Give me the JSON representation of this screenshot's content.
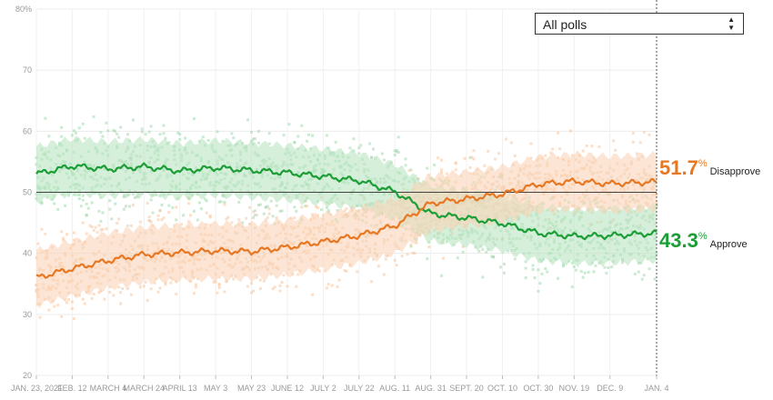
{
  "filter": {
    "selected": "All polls"
  },
  "chart_data": {
    "type": "line",
    "ylim": [
      20,
      80
    ],
    "y_ticks": [
      "20",
      "30",
      "40",
      "50",
      "60",
      "70",
      "80%"
    ],
    "x_ticks": [
      "JAN. 23, 2021",
      "FEB. 12",
      "MARCH 4",
      "MARCH 24",
      "APRIL 13",
      "MAY 3",
      "MAY 23",
      "JUNE 12",
      "JULY 2",
      "JULY 22",
      "AUG. 11",
      "AUG. 31",
      "SEPT. 20",
      "OCT. 10",
      "OCT. 30",
      "NOV. 19",
      "DEC. 9",
      "JAN. 4"
    ],
    "x_dates": [
      "2021-01-23",
      "2021-02-12",
      "2021-03-04",
      "2021-03-24",
      "2021-04-13",
      "2021-05-03",
      "2021-05-23",
      "2021-06-12",
      "2021-07-02",
      "2021-07-22",
      "2021-08-11",
      "2021-08-31",
      "2021-09-20",
      "2021-10-10",
      "2021-10-30",
      "2021-11-19",
      "2021-12-09",
      "2022-01-04"
    ],
    "reference_line": 50,
    "grid": true,
    "series": [
      {
        "name": "Approve",
        "color": "#1a9e35",
        "band_color": "#b9e5c2",
        "dot_color": "#9fd9ab",
        "x": [
          "2021-01-23",
          "2021-02-12",
          "2021-03-04",
          "2021-03-24",
          "2021-04-13",
          "2021-05-03",
          "2021-05-23",
          "2021-06-12",
          "2021-07-02",
          "2021-07-22",
          "2021-08-11",
          "2021-08-31",
          "2021-09-20",
          "2021-10-10",
          "2021-10-30",
          "2021-11-19",
          "2021-12-09",
          "2022-01-04"
        ],
        "values": [
          53.0,
          54.3,
          53.8,
          54.2,
          53.5,
          54.0,
          53.6,
          53.2,
          52.6,
          51.9,
          50.1,
          46.5,
          45.8,
          44.9,
          43.3,
          42.8,
          42.9,
          43.3
        ],
        "band_halfwidth": 4.5,
        "end_value": "43.3",
        "end_unit": "%",
        "end_label": "Approve"
      },
      {
        "name": "Disapprove",
        "color": "#e87722",
        "band_color": "#fad4b8",
        "dot_color": "#f8c49d",
        "x": [
          "2021-01-23",
          "2021-02-12",
          "2021-03-04",
          "2021-03-24",
          "2021-04-13",
          "2021-05-03",
          "2021-05-23",
          "2021-06-12",
          "2021-07-02",
          "2021-07-22",
          "2021-08-11",
          "2021-08-31",
          "2021-09-20",
          "2021-10-10",
          "2021-10-30",
          "2021-11-19",
          "2021-12-09",
          "2022-01-04"
        ],
        "values": [
          36.0,
          37.5,
          38.8,
          39.8,
          40.1,
          40.4,
          40.3,
          41.0,
          41.9,
          42.9,
          44.5,
          48.2,
          48.9,
          49.7,
          51.3,
          51.8,
          51.4,
          51.7
        ],
        "band_halfwidth": 4.5,
        "end_value": "51.7",
        "end_unit": "%",
        "end_label": "Disapprove"
      }
    ]
  }
}
